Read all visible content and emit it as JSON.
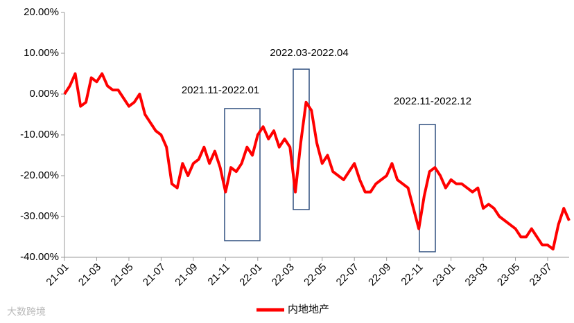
{
  "chart_data": {
    "type": "line",
    "categories": [
      "21-01",
      null,
      null,
      null,
      null,
      null,
      "21-03",
      null,
      null,
      null,
      null,
      null,
      "21-05",
      null,
      null,
      null,
      null,
      null,
      "21-07",
      null,
      null,
      null,
      null,
      null,
      "21-09",
      null,
      null,
      null,
      null,
      null,
      "21-11",
      null,
      null,
      null,
      null,
      null,
      "22-01",
      null,
      null,
      null,
      null,
      null,
      "22-03",
      null,
      null,
      null,
      null,
      null,
      "22-05",
      null,
      null,
      null,
      null,
      null,
      "22-07",
      null,
      null,
      null,
      null,
      null,
      "22-09",
      null,
      null,
      null,
      null,
      null,
      "22-11",
      null,
      null,
      null,
      null,
      null,
      "23-01",
      null,
      null,
      null,
      null,
      null,
      "23-03",
      null,
      null,
      null,
      null,
      null,
      "23-05",
      null,
      null,
      null,
      null,
      null,
      "23-07",
      null,
      null,
      null,
      null
    ],
    "series": [
      {
        "name": "内地地产",
        "color": "#ff0000",
        "values": [
          0,
          2,
          5,
          -3,
          -2,
          4,
          3,
          5,
          2,
          1,
          1,
          -1,
          -3,
          -2,
          0,
          -5,
          -7,
          -9,
          -10,
          -13,
          -22,
          -23,
          -17,
          -20,
          -17,
          -16,
          -13,
          -17,
          -14,
          -18,
          -24,
          -18,
          -19,
          -17,
          -13,
          -15,
          -10,
          -8,
          -11,
          -9,
          -13,
          -11,
          -13,
          -24,
          -12,
          -2,
          -4,
          -12,
          -17,
          -15,
          -19,
          -20,
          -21,
          -19,
          -17,
          -21,
          -24,
          -24,
          -22,
          -21,
          -20,
          -17,
          -21,
          -22,
          -23,
          -28,
          -33,
          -25,
          -19,
          -18,
          -20,
          -23,
          -21,
          -22,
          -22,
          -23,
          -24,
          -23,
          -28,
          -27,
          -28,
          -30,
          -31,
          -32,
          -33,
          -35,
          -35,
          -33,
          -35,
          -37,
          -37,
          -38,
          -32,
          -28,
          -31
        ]
      }
    ],
    "ylim": [
      -40,
      20
    ],
    "yticks": [
      {
        "value": 20,
        "label": "20.00%"
      },
      {
        "value": 10,
        "label": "10.00%"
      },
      {
        "value": 0,
        "label": "0.00%"
      },
      {
        "value": -10,
        "label": "-10.00%"
      },
      {
        "value": -20,
        "label": "-20.00%"
      },
      {
        "value": -30,
        "label": "-30.00%"
      },
      {
        "value": -40,
        "label": "-40.00%"
      }
    ],
    "annotations": [
      "2021.11-2022.01",
      "2022.03-2022.04",
      "2022.11-2022.12"
    ],
    "watermark": "大数跨境",
    "legend": "bottom"
  }
}
